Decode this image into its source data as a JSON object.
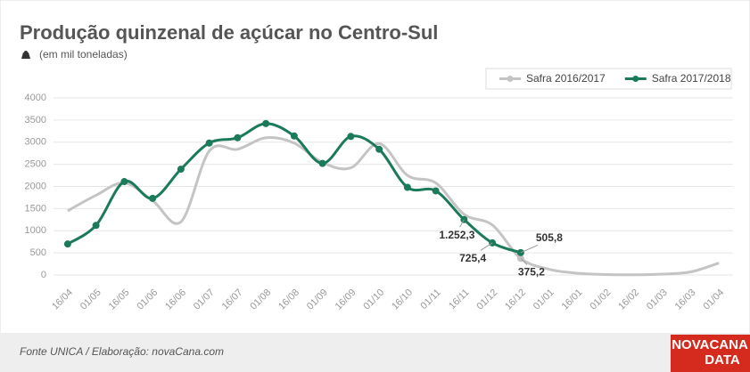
{
  "chart_data": {
    "type": "line",
    "title": "Produção quinzenal de açúcar no Centro-Sul",
    "subtitle": "(em mil toneladas)",
    "source": "Fonte UNICA / Elaboração: novaCana.com",
    "logo": [
      "NOVACANA",
      "DATA"
    ],
    "categories": [
      "16/04",
      "01/05",
      "16/05",
      "01/06",
      "16/06",
      "01/07",
      "16/07",
      "01/08",
      "16/08",
      "01/09",
      "16/09",
      "01/10",
      "16/10",
      "01/11",
      "16/11",
      "01/12",
      "16/12",
      "01/01",
      "16/01",
      "01/02",
      "16/02",
      "01/03",
      "16/03",
      "01/04"
    ],
    "series": [
      {
        "name": "Safra 2016/2017",
        "color": "#c4c4c4",
        "markers": false,
        "values": [
          1450,
          1800,
          2080,
          1680,
          1200,
          2800,
          2840,
          3100,
          2980,
          2540,
          2420,
          2970,
          2250,
          2080,
          1370,
          1130,
          375.2,
          130,
          40,
          10,
          5,
          20,
          70,
          270
        ],
        "value_labels": [
          null,
          null,
          null,
          null,
          null,
          null,
          null,
          null,
          null,
          null,
          null,
          null,
          null,
          null,
          null,
          null,
          "375,2",
          null,
          null,
          null,
          null,
          null,
          null,
          null
        ]
      },
      {
        "name": "Safra 2017/2018",
        "color": "#1a7a5a",
        "markers": true,
        "values": [
          700,
          1120,
          2110,
          1730,
          2390,
          2980,
          3100,
          3420,
          3140,
          2520,
          3130,
          2840,
          1980,
          1900,
          1252.3,
          725.4,
          505.8,
          null,
          null,
          null,
          null,
          null,
          null,
          null
        ],
        "value_labels": [
          null,
          null,
          null,
          null,
          null,
          null,
          null,
          null,
          null,
          null,
          null,
          null,
          null,
          null,
          "1.252,3",
          "725,4",
          "505,8",
          null,
          null,
          null,
          null,
          null,
          null,
          null
        ]
      }
    ],
    "ylim": [
      0,
      4000
    ],
    "yticks": [
      0,
      500,
      1000,
      1500,
      2000,
      2500,
      3000,
      3500,
      4000
    ],
    "grid": true,
    "legend": "top-right"
  }
}
